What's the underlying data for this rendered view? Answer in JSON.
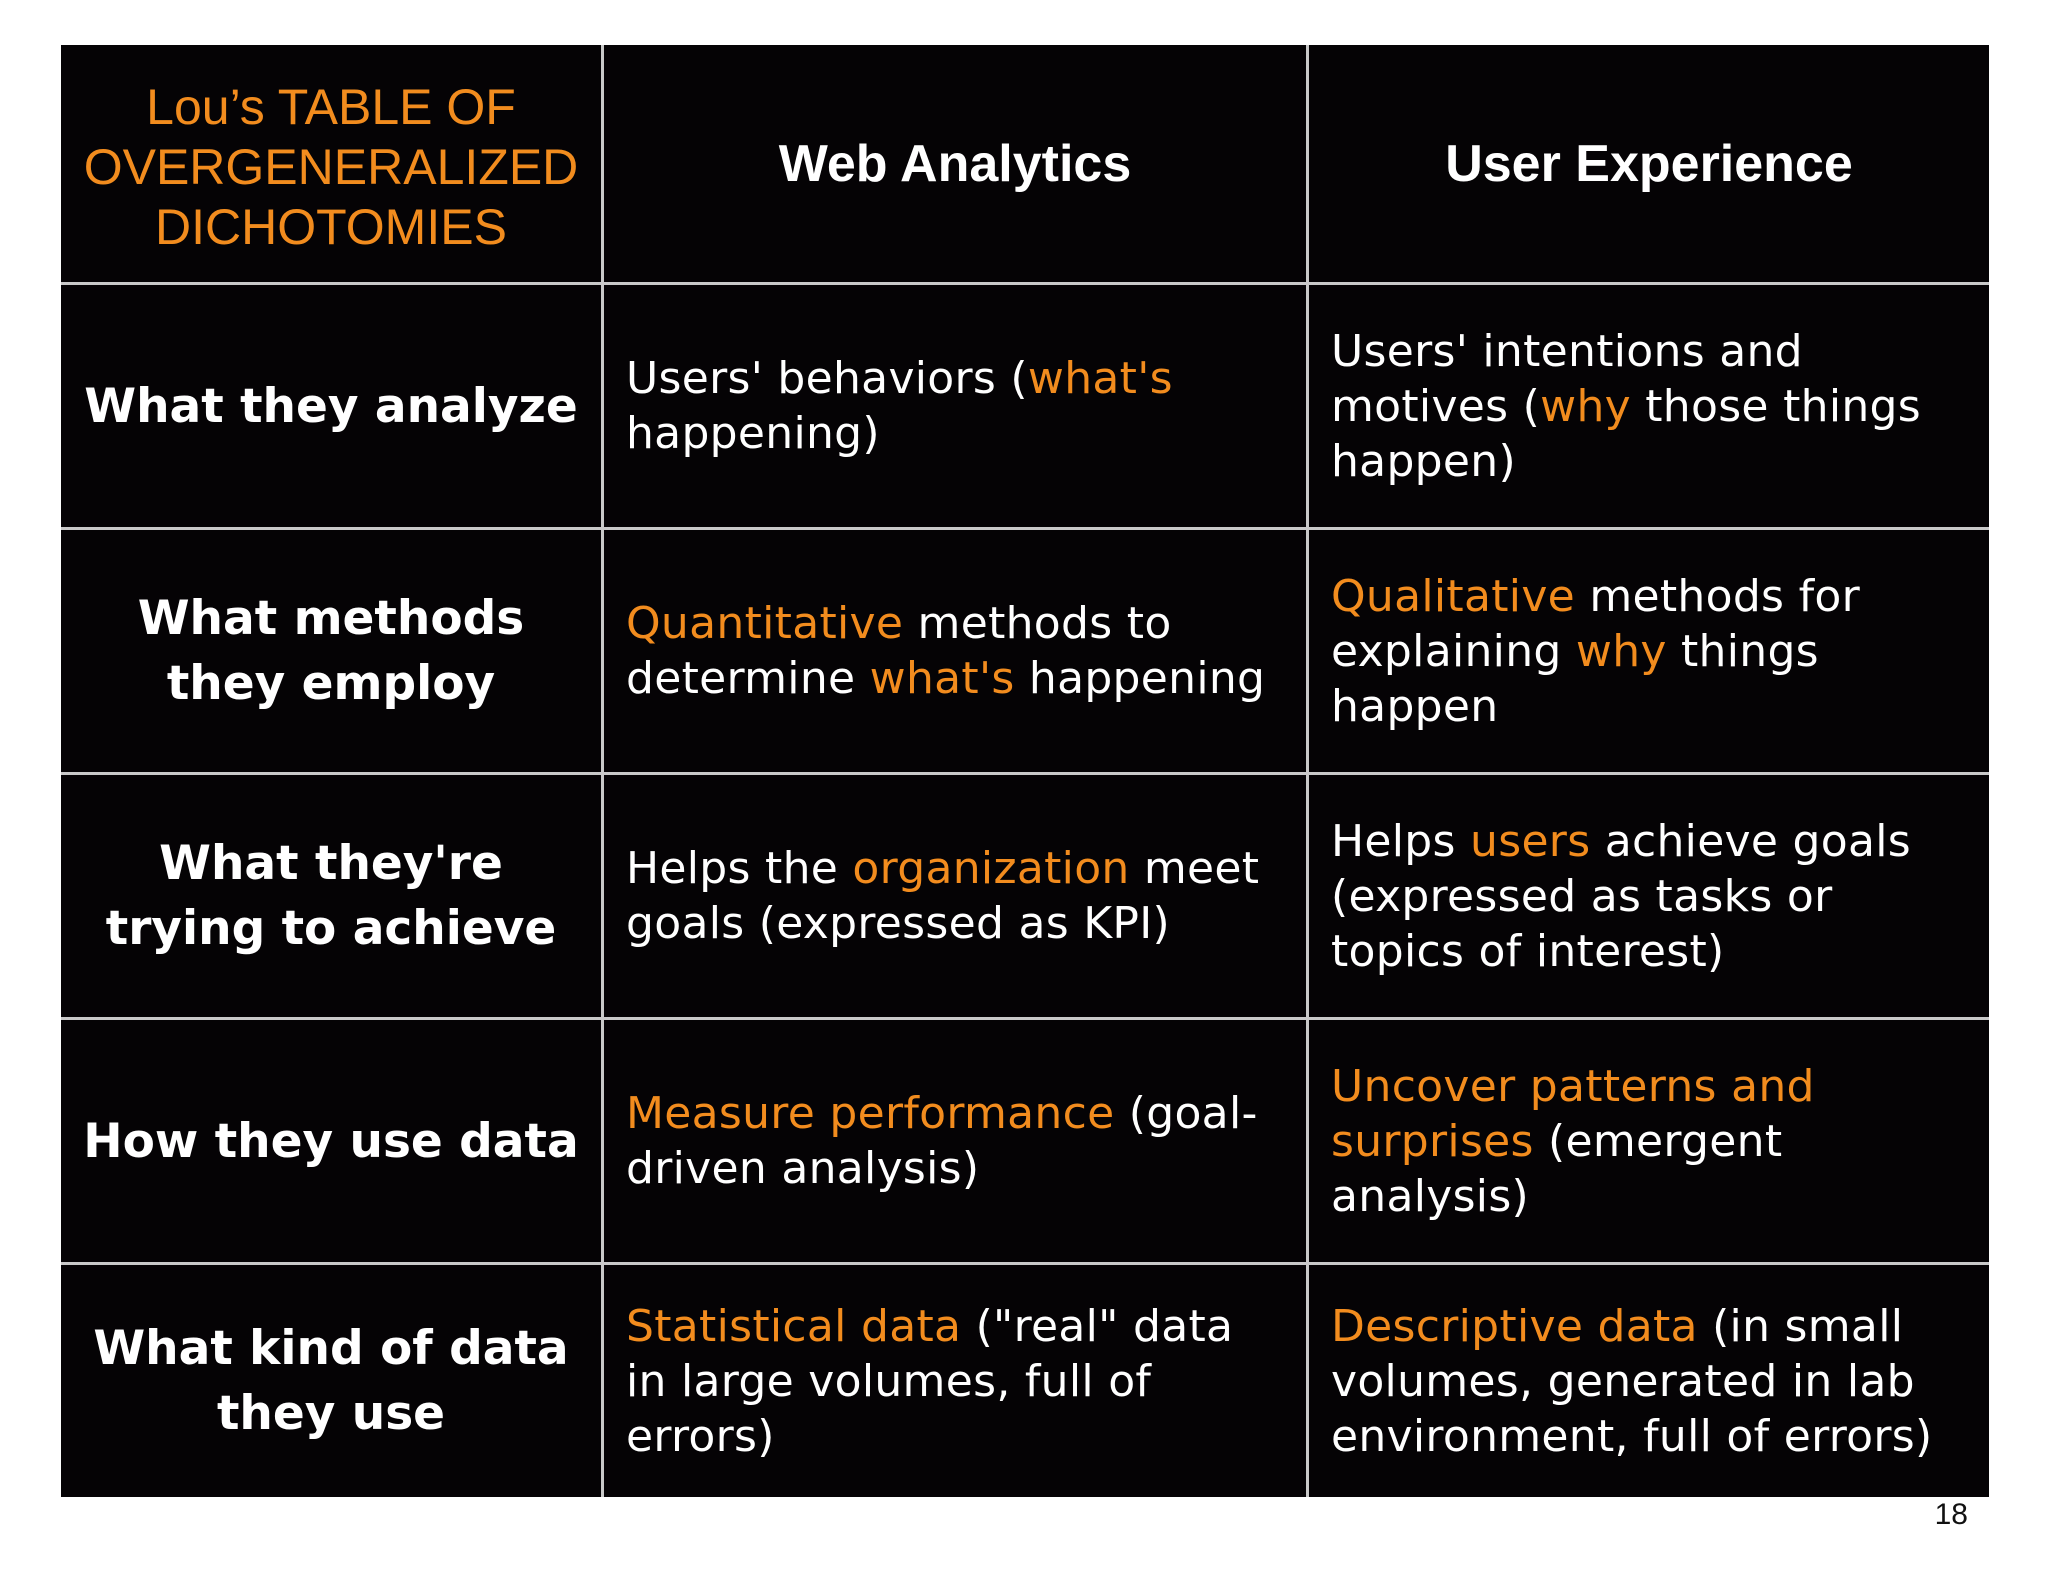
{
  "table": {
    "corner_title": "Lou’s TABLE OF OVERGENERALIZED DICHOTOMIES",
    "columns": [
      "Web Analytics",
      "User Experience"
    ],
    "rows": [
      {
        "label": "What they analyze",
        "web_analytics": [
          {
            "text": "Users' behaviors (",
            "highlight": false
          },
          {
            "text": "what's",
            "highlight": true
          },
          {
            "text": " happening)",
            "highlight": false
          }
        ],
        "user_experience": [
          {
            "text": "Users' intentions and motives (",
            "highlight": false
          },
          {
            "text": "why",
            "highlight": true
          },
          {
            "text": " those things happen)",
            "highlight": false
          }
        ]
      },
      {
        "label": "What methods they employ",
        "web_analytics": [
          {
            "text": "Quantitative",
            "highlight": true
          },
          {
            "text": " methods to determine ",
            "highlight": false
          },
          {
            "text": "what's",
            "highlight": true
          },
          {
            "text": " happening",
            "highlight": false
          }
        ],
        "user_experience": [
          {
            "text": "Qualitative",
            "highlight": true
          },
          {
            "text": " methods for explaining ",
            "highlight": false
          },
          {
            "text": "why",
            "highlight": true
          },
          {
            "text": " things happen",
            "highlight": false
          }
        ]
      },
      {
        "label": "What they're trying to achieve",
        "web_analytics": [
          {
            "text": "Helps the ",
            "highlight": false
          },
          {
            "text": "organization",
            "highlight": true
          },
          {
            "text": " meet goals (expressed as KPI)",
            "highlight": false
          }
        ],
        "user_experience": [
          {
            "text": "Helps ",
            "highlight": false
          },
          {
            "text": "users",
            "highlight": true
          },
          {
            "text": " achieve goals (expressed as tasks or topics of interest)",
            "highlight": false
          }
        ]
      },
      {
        "label": "How they use data",
        "web_analytics": [
          {
            "text": "Measure performance",
            "highlight": true
          },
          {
            "text": " (goal-driven analysis)",
            "highlight": false
          }
        ],
        "user_experience": [
          {
            "text": "Uncover patterns and surprises",
            "highlight": true
          },
          {
            "text": " (emergent analysis)",
            "highlight": false
          }
        ]
      },
      {
        "label": "What kind of data they use",
        "web_analytics": [
          {
            "text": "Statistical data",
            "highlight": true
          },
          {
            "text": " (\"real\" data in large volumes, full of errors)",
            "highlight": false
          }
        ],
        "user_experience": [
          {
            "text": "Descriptive data",
            "highlight": true
          },
          {
            "text": " (in small volumes, generated in lab environment, full of errors)",
            "highlight": false
          }
        ]
      }
    ]
  },
  "page_number": "18",
  "colors": {
    "highlight": "#f28c1e",
    "text": "#ffffff",
    "background": "#050305",
    "grid_lines": "#c9c9c9"
  }
}
